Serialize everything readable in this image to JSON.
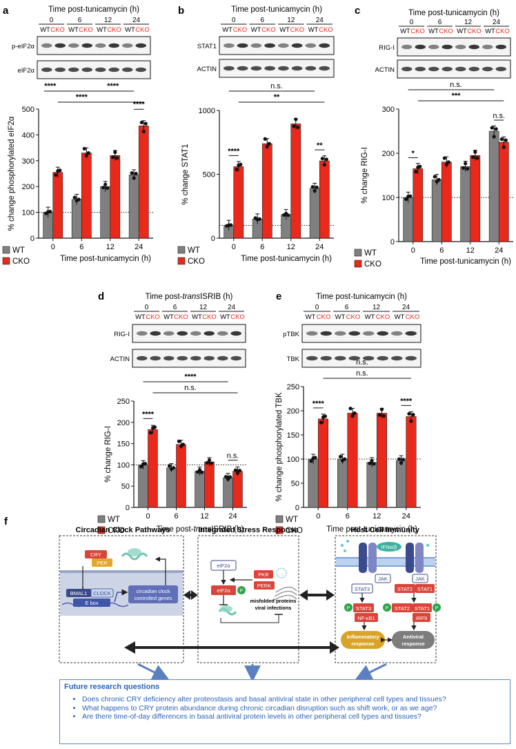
{
  "panels": {
    "a": {
      "letter": "a",
      "blot_header": "Time post-tunicamycin (h)",
      "blot_labels": [
        "p-eIF2α",
        "eIF2α"
      ],
      "chart_data": {
        "type": "bar",
        "categories": [
          "0",
          "6",
          "12",
          "24"
        ],
        "series": [
          {
            "name": "WT",
            "values": [
              100,
              150,
              200,
              245
            ]
          },
          {
            "name": "CKO",
            "values": [
              255,
              330,
              320,
              435
            ]
          }
        ],
        "ylabel": "% change phosphorylated eIF2α",
        "xlabel": "Time post-tunicamycin (h)",
        "ylim": [
          0,
          500
        ],
        "yticks": [
          "0",
          "100",
          "200",
          "300",
          "400",
          "500"
        ],
        "reference_line": 100,
        "significance": [
          "****",
          "****",
          "****",
          "****"
        ]
      }
    },
    "b": {
      "letter": "b",
      "blot_header": "Time post-tunicamycin (h)",
      "blot_labels": [
        "STAT1",
        "ACTIN"
      ],
      "chart_data": {
        "type": "bar",
        "categories": [
          "0",
          "6",
          "12",
          "24"
        ],
        "series": [
          {
            "name": "WT",
            "values": [
              100,
              150,
              185,
              390
            ]
          },
          {
            "name": "CKO",
            "values": [
              560,
              740,
              895,
              605
            ]
          }
        ],
        "ylabel": "% change STAT1",
        "xlabel": "Time post-tunicamycin (h)",
        "ylim": [
          0,
          1000
        ],
        "yticks": [
          "0",
          "500",
          "1000"
        ],
        "reference_line": 100,
        "significance": [
          "n.s.",
          "**",
          "****",
          "**"
        ]
      }
    },
    "c": {
      "letter": "c",
      "blot_header": "Time post-tunicamycin (h)",
      "blot_labels": [
        "RIG-I",
        "ACTIN"
      ],
      "chart_data": {
        "type": "bar",
        "categories": [
          "0",
          "6",
          "12",
          "24"
        ],
        "series": [
          {
            "name": "WT",
            "values": [
              100,
              140,
              170,
              250
            ]
          },
          {
            "name": "CKO",
            "values": [
              165,
              180,
              195,
              225
            ]
          }
        ],
        "ylabel": "% change RIG-I",
        "xlabel": "Time post-tunicamycin (h)",
        "ylim": [
          0,
          300
        ],
        "yticks": [
          "0",
          "100",
          "200",
          "300"
        ],
        "reference_line": 100,
        "significance": [
          "n.s.",
          "***",
          "*",
          "n.s."
        ]
      }
    },
    "d": {
      "letter": "d",
      "blot_header_pre": "Time post-",
      "blot_header_italic": "trans",
      "blot_header_post": "ISRIB (h)",
      "blot_labels": [
        "RIG-I",
        "ACTIN"
      ],
      "chart_data": {
        "type": "bar",
        "categories": [
          "0",
          "6",
          "12",
          "24"
        ],
        "series": [
          {
            "name": "WT",
            "values": [
              100,
              93,
              85,
              70
            ]
          },
          {
            "name": "CKO",
            "values": [
              183,
              148,
              107,
              85
            ]
          }
        ],
        "ylabel": "% change RIG-I",
        "xlabel_pre": "Time post-",
        "xlabel_italic": "trans",
        "xlabel_post": "ISRIB (h)",
        "ylim": [
          0,
          250
        ],
        "yticks": [
          "0",
          "50",
          "100",
          "150",
          "200",
          "250"
        ],
        "reference_line": 100,
        "significance": [
          "****",
          "n.s.",
          "****",
          "n.s."
        ]
      }
    },
    "e": {
      "letter": "e",
      "blot_header": "Time post-tunicamycin (h)",
      "blot_labels": [
        "pTBK",
        "TBK"
      ],
      "chart_data": {
        "type": "bar",
        "categories": [
          "0",
          "6",
          "12",
          "24"
        ],
        "series": [
          {
            "name": "WT",
            "values": [
              100,
              100,
              93,
              97
            ]
          },
          {
            "name": "CKO",
            "values": [
              183,
              195,
              195,
              188
            ]
          }
        ],
        "ylabel": "% change phosphorylated TBK",
        "xlabel": "Time post-tunicamycin (h)",
        "ylim": [
          0,
          250
        ],
        "yticks": [
          "0",
          "50",
          "100",
          "150",
          "200",
          "250"
        ],
        "reference_line": 100,
        "significance": [
          "n.s.",
          "n.s.",
          "****",
          "****"
        ]
      }
    }
  },
  "blot_common": {
    "times": [
      "0",
      "6",
      "12",
      "24"
    ],
    "wt": "WT",
    "cko": "CKO"
  },
  "legend": {
    "wt": "WT",
    "cko": "CKO"
  },
  "colors": {
    "wt": "#808080",
    "cko": "#e8291c",
    "cko_text": "#e8291c",
    "accent_blue": "#2a62b8"
  },
  "schematic": {
    "letter": "f",
    "titles": {
      "clock": "Circadian Clock Pathways",
      "isr": "Integrated Stress Response",
      "immunity": "Host Cell Immunity"
    },
    "clock": {
      "cry": "CRY",
      "per": "PER",
      "bmal1": "BMAL1",
      "clock": "CLOCK",
      "ebox": "E box",
      "genes_line1": "circadian clock",
      "genes_line2": "controlled genes"
    },
    "isr": {
      "eif2a": "eIF2α",
      "pkr": "PKR",
      "perk": "PERK",
      "p": "P",
      "misfolded_line1": "misfolded proteins",
      "misfolded_line2": "viral infections"
    },
    "immunity": {
      "ifn": "IFNα/β",
      "jak": "JAK",
      "stat3": "STAT3",
      "stat2": "STAT2",
      "stat1": "STAT1",
      "nfkb1": "NF-κB1",
      "irf9": "IRF9",
      "p": "P",
      "inflam_line1": "Inflammatory",
      "inflam_line2": "response",
      "antiviral_line1": "Antiviral",
      "antiviral_line2": "response"
    }
  },
  "future": {
    "title": "Future research questions",
    "items": [
      "Does chronic CRY deficiency alter proteostasis and basal antiviral state in other peripheral cell types and tissues?",
      "What happens to CRY protein abundance during chronic circadian disruption such as shift work, or as we age?",
      "Are there time-of-day differences in basal antiviral protein levels in other peripheral cell types and tissues?"
    ]
  }
}
